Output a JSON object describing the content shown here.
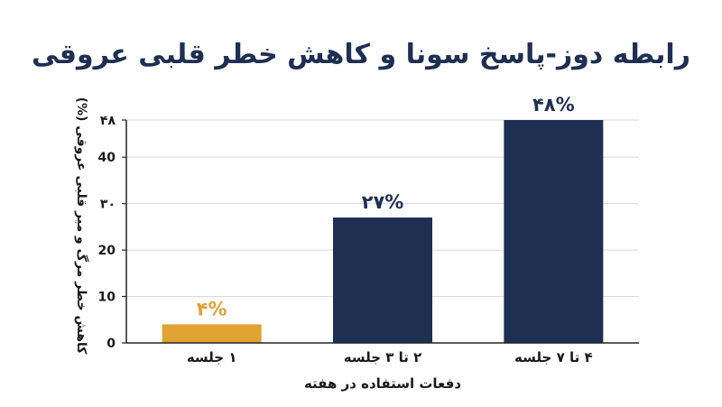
{
  "chart_data": {
    "type": "bar",
    "title": "رابطه دوز-پاسخ سونا و کاهش خطر قلبی عروقی",
    "xlabel": "دفعات استفاده در هفته",
    "ylabel": "کاهش خطر مرگ و میر قلبی عروقی (%)",
    "categories": [
      "۱ جلسه",
      "۲ تا ۳ جلسه",
      "۴ تا ۷ جلسه"
    ],
    "values": [
      4,
      27,
      48
    ],
    "value_labels": [
      "۴%",
      "۲۷%",
      "۴۸%"
    ],
    "bar_colors": [
      "#E0A230",
      "#1F2F52",
      "#1F2F52"
    ],
    "label_colors": [
      "#E0A230",
      "#1F2F52",
      "#1F2F52"
    ],
    "ylim": [
      0,
      48
    ],
    "yticks": [
      0,
      10,
      20,
      30,
      40,
      48
    ],
    "ytick_labels": [
      "0",
      "10",
      "20",
      "۳۰",
      "40",
      "۴۸"
    ],
    "grid": true,
    "legend": "none",
    "colors": {
      "title": "#1F2F52",
      "text": "#1A1A1A",
      "grid": "#D9D9D9",
      "axis": "#222222"
    }
  }
}
